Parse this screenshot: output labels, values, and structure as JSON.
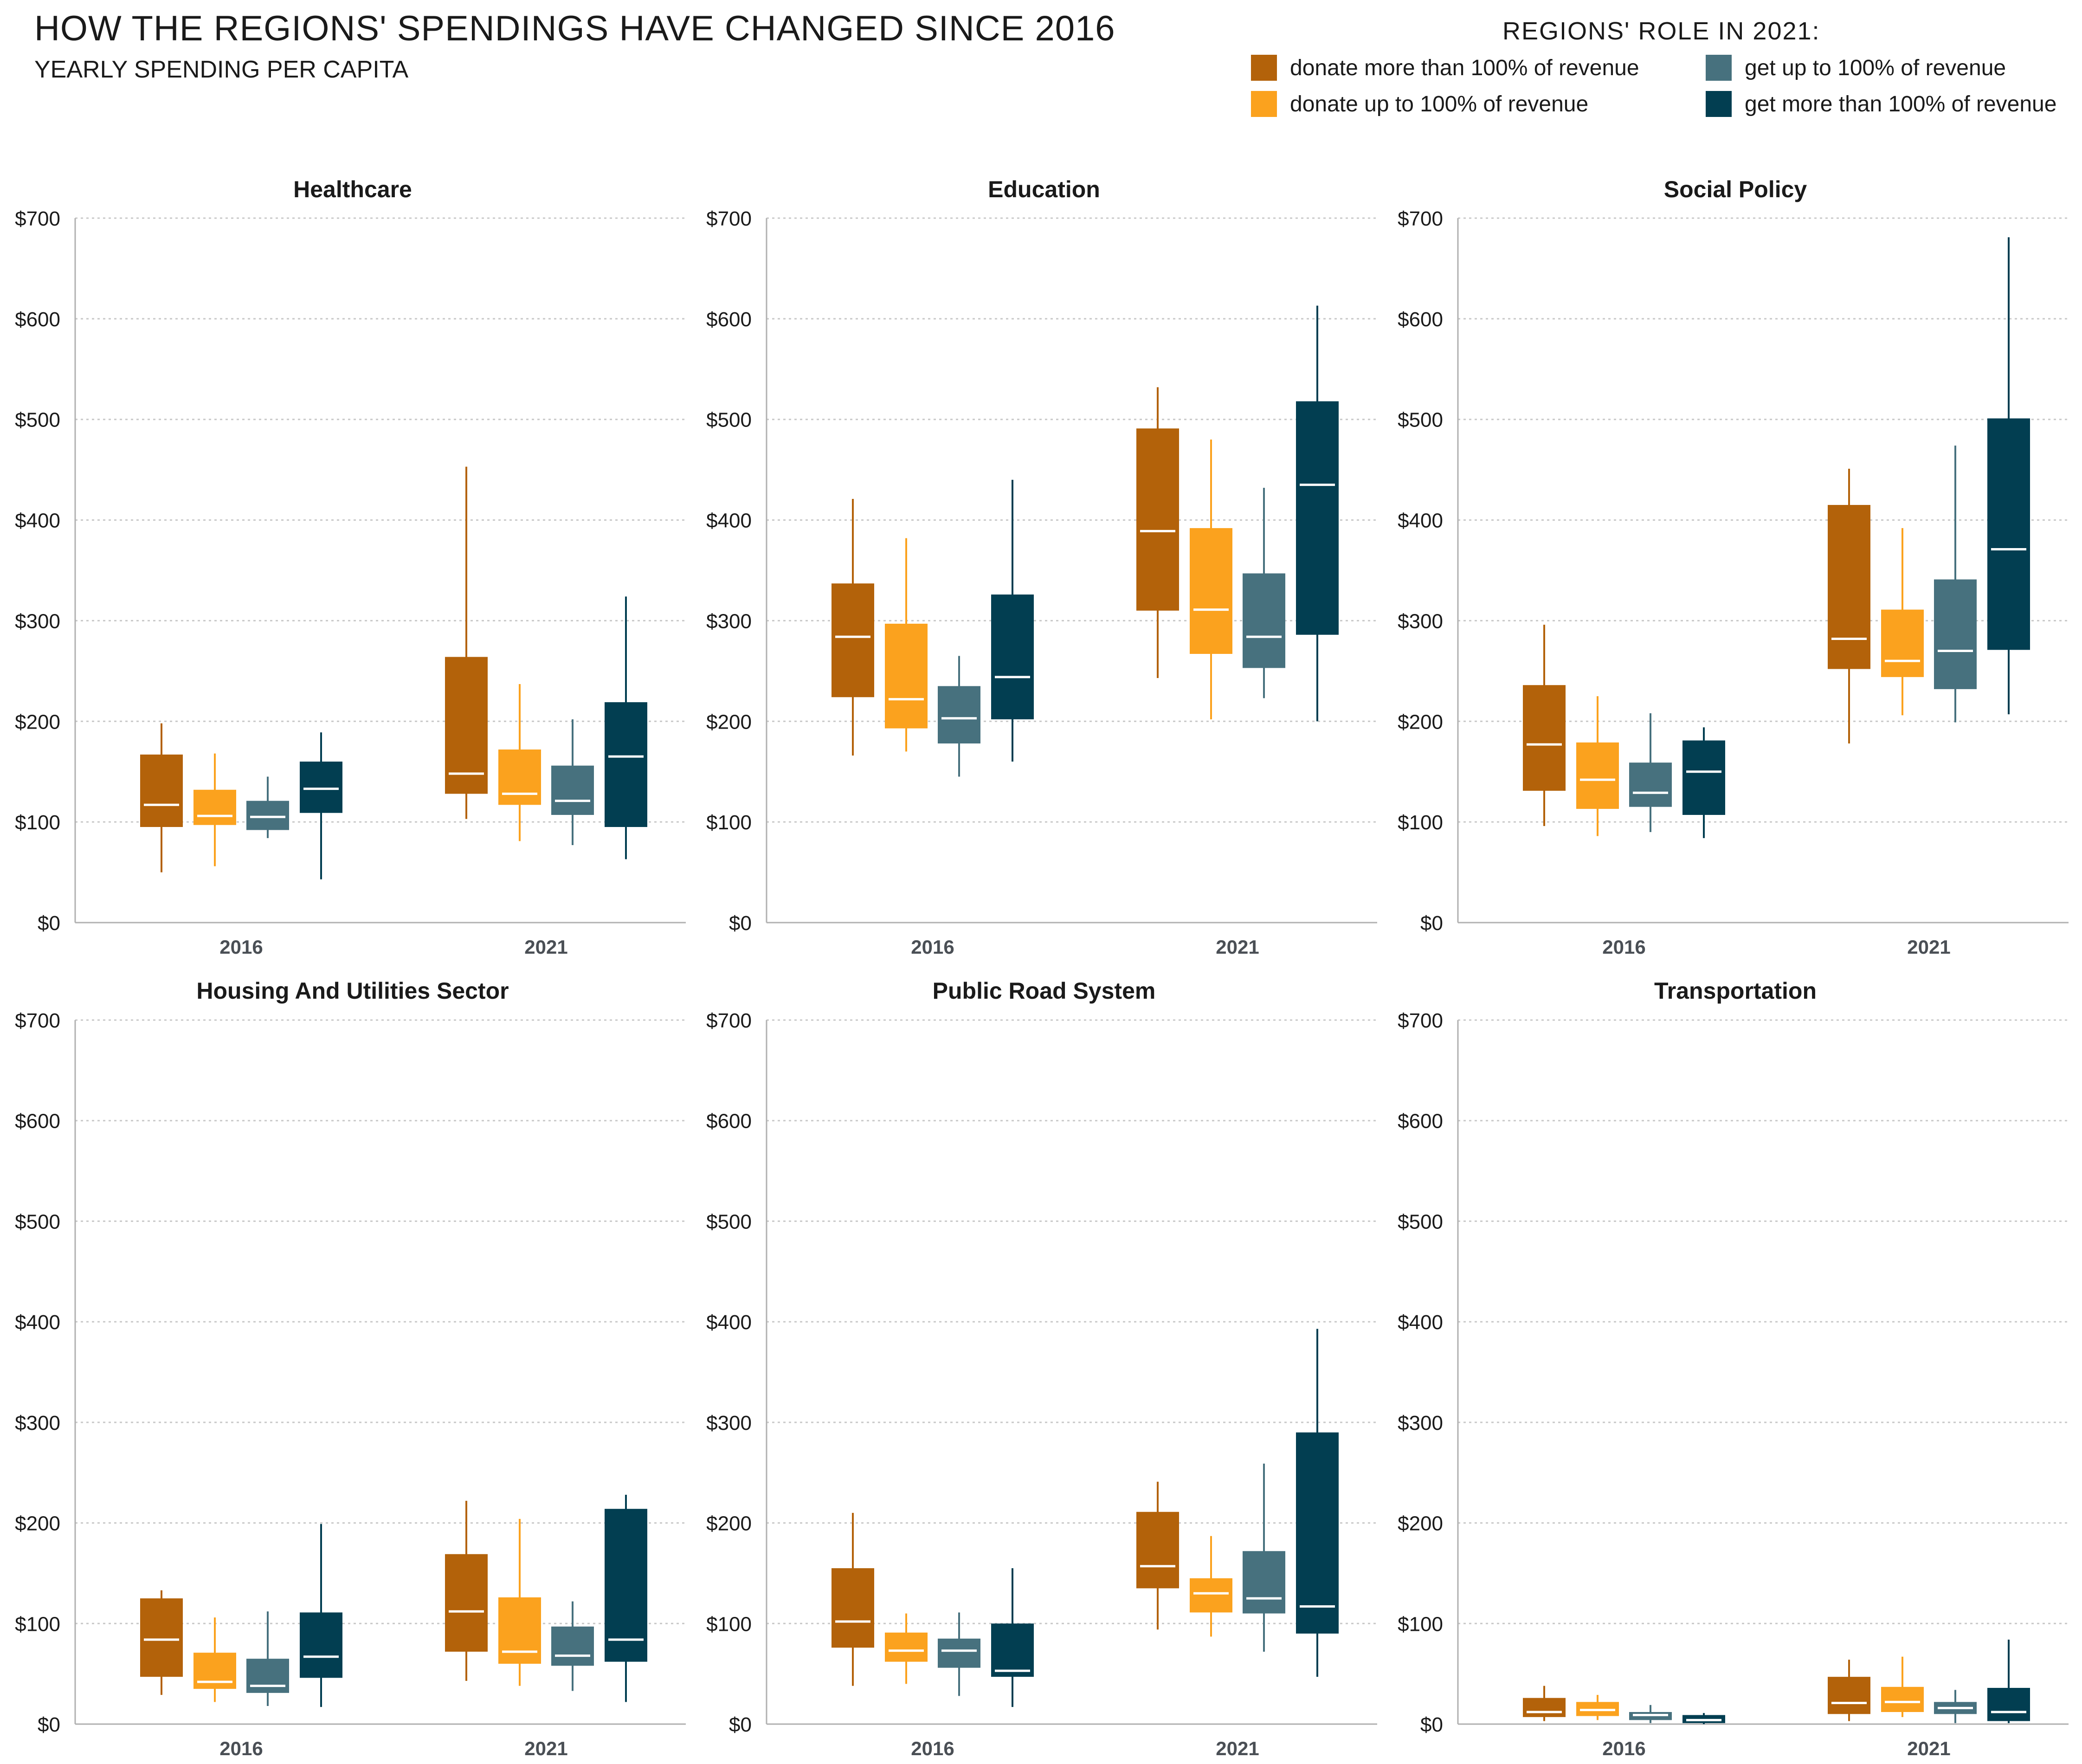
{
  "title": "HOW THE REGIONS' SPENDINGS HAVE CHANGED SINCE 2016",
  "subtitle": "YEARLY SPENDING PER CAPITA",
  "legend": {
    "title": "REGIONS' ROLE IN 2021:",
    "items": [
      {
        "label": "donate more than 100% of revenue",
        "color": "#B3620A"
      },
      {
        "label": "donate up to 100% of revenue",
        "color": "#FBA21E"
      },
      {
        "label": "get up to 100% of revenue",
        "color": "#47717E"
      },
      {
        "label": "get more than 100% of revenue",
        "color": "#023E51"
      }
    ]
  },
  "chart_data": [
    {
      "type": "box",
      "title": "Healthcare",
      "categories": [
        "2016",
        "2021"
      ],
      "ylim": [
        0,
        700
      ],
      "yticks": [
        "$0",
        "$100",
        "$200",
        "$300",
        "$400",
        "$500",
        "$600",
        "$700"
      ],
      "grid": true,
      "series": [
        {
          "name": "donate more than 100% of revenue",
          "boxes": [
            [
              50,
              95,
              117,
              167,
              198
            ],
            [
              103,
              128,
              148,
              264,
              453
            ]
          ]
        },
        {
          "name": "donate up to 100% of revenue",
          "boxes": [
            [
              56,
              97,
              106,
              132,
              168
            ],
            [
              81,
              117,
              128,
              172,
              237
            ]
          ]
        },
        {
          "name": "get up to 100% of revenue",
          "boxes": [
            [
              84,
              92,
              105,
              121,
              145
            ],
            [
              77,
              107,
              121,
              156,
              202
            ]
          ]
        },
        {
          "name": "get more than 100% of revenue",
          "boxes": [
            [
              43,
              109,
              133,
              160,
              189
            ],
            [
              63,
              95,
              165,
              219,
              324
            ]
          ]
        }
      ]
    },
    {
      "type": "box",
      "title": "Education",
      "categories": [
        "2016",
        "2021"
      ],
      "ylim": [
        0,
        700
      ],
      "yticks": [
        "$0",
        "$100",
        "$200",
        "$300",
        "$400",
        "$500",
        "$600",
        "$700"
      ],
      "grid": true,
      "series": [
        {
          "name": "donate more than 100% of revenue",
          "boxes": [
            [
              166,
              224,
              284,
              337,
              421
            ],
            [
              243,
              310,
              389,
              491,
              532
            ]
          ]
        },
        {
          "name": "donate up to 100% of revenue",
          "boxes": [
            [
              170,
              193,
              222,
              297,
              382
            ],
            [
              202,
              267,
              311,
              392,
              480
            ]
          ]
        },
        {
          "name": "get up to 100% of revenue",
          "boxes": [
            [
              145,
              178,
              203,
              235,
              265
            ],
            [
              223,
              253,
              284,
              347,
              432
            ]
          ]
        },
        {
          "name": "get more than 100% of revenue",
          "boxes": [
            [
              160,
              202,
              244,
              326,
              440
            ],
            [
              200,
              286,
              435,
              518,
              613
            ]
          ]
        }
      ]
    },
    {
      "type": "box",
      "title": "Social Policy",
      "categories": [
        "2016",
        "2021"
      ],
      "ylim": [
        0,
        700
      ],
      "yticks": [
        "$0",
        "$100",
        "$200",
        "$300",
        "$400",
        "$500",
        "$600",
        "$700"
      ],
      "grid": true,
      "series": [
        {
          "name": "donate more than 100% of revenue",
          "boxes": [
            [
              96,
              131,
              177,
              236,
              296
            ],
            [
              178,
              252,
              282,
              415,
              451
            ]
          ]
        },
        {
          "name": "donate up to 100% of revenue",
          "boxes": [
            [
              86,
              113,
              142,
              179,
              225
            ],
            [
              206,
              244,
              260,
              311,
              392
            ]
          ]
        },
        {
          "name": "get up to 100% of revenue",
          "boxes": [
            [
              90,
              115,
              129,
              159,
              208
            ],
            [
              199,
              232,
              270,
              341,
              474
            ]
          ]
        },
        {
          "name": "get more than 100% of revenue",
          "boxes": [
            [
              84,
              107,
              150,
              181,
              194
            ],
            [
              207,
              271,
              371,
              501,
              681
            ]
          ]
        }
      ]
    },
    {
      "type": "box",
      "title": "Housing And Utilities Sector",
      "categories": [
        "2016",
        "2021"
      ],
      "ylim": [
        0,
        700
      ],
      "yticks": [
        "$0",
        "$100",
        "$200",
        "$300",
        "$400",
        "$500",
        "$600",
        "$700"
      ],
      "grid": true,
      "series": [
        {
          "name": "donate more than 100% of revenue",
          "boxes": [
            [
              29,
              47,
              84,
              125,
              133
            ],
            [
              43,
              72,
              112,
              169,
              222
            ]
          ]
        },
        {
          "name": "donate up to 100% of revenue",
          "boxes": [
            [
              22,
              35,
              42,
              71,
              106
            ],
            [
              38,
              60,
              72,
              126,
              204
            ]
          ]
        },
        {
          "name": "get up to 100% of revenue",
          "boxes": [
            [
              18,
              31,
              38,
              65,
              112
            ],
            [
              33,
              58,
              68,
              97,
              122
            ]
          ]
        },
        {
          "name": "get more than 100% of revenue",
          "boxes": [
            [
              17,
              46,
              67,
              111,
              199
            ],
            [
              22,
              62,
              84,
              214,
              228
            ]
          ]
        }
      ]
    },
    {
      "type": "box",
      "title": "Public Road System",
      "categories": [
        "2016",
        "2021"
      ],
      "ylim": [
        0,
        700
      ],
      "yticks": [
        "$0",
        "$100",
        "$200",
        "$300",
        "$400",
        "$500",
        "$600",
        "$700"
      ],
      "grid": true,
      "series": [
        {
          "name": "donate more than 100% of revenue",
          "boxes": [
            [
              38,
              76,
              102,
              155,
              210
            ],
            [
              94,
              135,
              157,
              211,
              241
            ]
          ]
        },
        {
          "name": "donate up to 100% of revenue",
          "boxes": [
            [
              40,
              62,
              73,
              91,
              110
            ],
            [
              87,
              111,
              130,
              145,
              187
            ]
          ]
        },
        {
          "name": "get up to 100% of revenue",
          "boxes": [
            [
              28,
              56,
              73,
              85,
              111
            ],
            [
              72,
              110,
              125,
              172,
              259
            ]
          ]
        },
        {
          "name": "get more than 100% of revenue",
          "boxes": [
            [
              17,
              47,
              53,
              100,
              155
            ],
            [
              47,
              90,
              117,
              290,
              393
            ]
          ]
        }
      ]
    },
    {
      "type": "box",
      "title": "Transportation",
      "categories": [
        "2016",
        "2021"
      ],
      "ylim": [
        0,
        700
      ],
      "yticks": [
        "$0",
        "$100",
        "$200",
        "$300",
        "$400",
        "$500",
        "$600",
        "$700"
      ],
      "grid": true,
      "series": [
        {
          "name": "donate more than 100% of revenue",
          "boxes": [
            [
              3,
              7,
              12,
              26,
              38
            ],
            [
              3,
              10,
              21,
              47,
              64
            ]
          ]
        },
        {
          "name": "donate up to 100% of revenue",
          "boxes": [
            [
              4,
              8,
              14,
              22,
              29
            ],
            [
              7,
              12,
              22,
              37,
              67
            ]
          ]
        },
        {
          "name": "get up to 100% of revenue",
          "boxes": [
            [
              1,
              4,
              9,
              12,
              19
            ],
            [
              1,
              10,
              16,
              22,
              34
            ]
          ]
        },
        {
          "name": "get more than 100% of revenue",
          "boxes": [
            [
              0,
              1,
              4,
              9,
              11
            ],
            [
              1,
              3,
              12,
              36,
              84
            ]
          ]
        }
      ]
    }
  ]
}
